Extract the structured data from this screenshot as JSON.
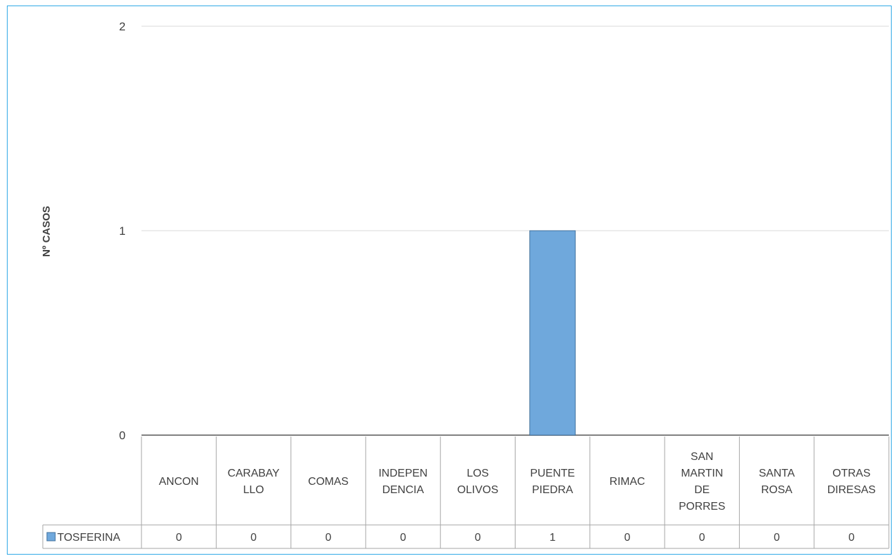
{
  "chart_data": {
    "type": "bar",
    "ylabel": "Nº CASOS",
    "ylim": [
      0,
      2
    ],
    "yticks": [
      0,
      1,
      2
    ],
    "grid": true,
    "categories": [
      [
        "ANCON"
      ],
      [
        "CARABAY",
        "LLO"
      ],
      [
        "COMAS"
      ],
      [
        "INDEPEN",
        "DENCIA"
      ],
      [
        "LOS",
        "OLIVOS"
      ],
      [
        "PUENTE",
        "PIEDRA"
      ],
      [
        "RIMAC"
      ],
      [
        "SAN",
        "MARTIN",
        "DE",
        "PORRES"
      ],
      [
        "SANTA",
        "ROSA"
      ],
      [
        "OTRAS",
        "DIRESAS"
      ]
    ],
    "series": [
      {
        "name": "TOSFERINA",
        "color": "#6fa8dc",
        "values": [
          0,
          0,
          0,
          0,
          0,
          1,
          0,
          0,
          0,
          0
        ]
      }
    ],
    "legend": "data-table"
  }
}
